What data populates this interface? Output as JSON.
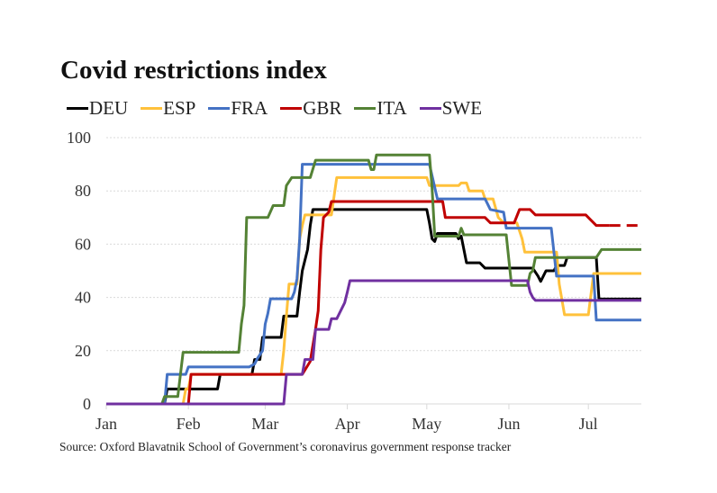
{
  "chart_data": {
    "type": "line",
    "title": "Covid restrictions index",
    "xlabel": "",
    "ylabel": "",
    "ylim": [
      0,
      100
    ],
    "yticks": [
      0,
      20,
      40,
      60,
      80,
      100
    ],
    "xlim_day": [
      0,
      202
    ],
    "xticks": [
      {
        "label": "Jan",
        "day": 0
      },
      {
        "label": "Feb",
        "day": 31
      },
      {
        "label": "Mar",
        "day": 60
      },
      {
        "label": "Apr",
        "day": 91
      },
      {
        "label": "May",
        "day": 121
      },
      {
        "label": "Jun",
        "day": 152
      },
      {
        "label": "Jul",
        "day": 182
      }
    ],
    "grid": "horizontal-dotted",
    "legend": "top-left",
    "x_unit": "day of year 2020",
    "series": [
      {
        "name": "DEU",
        "color": "#000000",
        "points": [
          [
            0,
            0
          ],
          [
            22,
            0
          ],
          [
            23,
            5.6
          ],
          [
            42,
            5.6
          ],
          [
            43,
            11.1
          ],
          [
            55,
            11.1
          ],
          [
            56,
            16.7
          ],
          [
            58,
            16.7
          ],
          [
            59,
            25
          ],
          [
            66,
            25
          ],
          [
            67,
            33
          ],
          [
            72,
            33
          ],
          [
            73,
            42
          ],
          [
            74,
            50
          ],
          [
            76,
            58
          ],
          [
            77,
            67
          ],
          [
            78,
            73
          ],
          [
            121,
            73
          ],
          [
            122,
            68
          ],
          [
            123,
            62
          ],
          [
            124,
            61
          ],
          [
            125,
            64
          ],
          [
            132,
            64
          ],
          [
            133,
            62
          ],
          [
            134,
            63
          ],
          [
            135,
            58
          ],
          [
            136,
            53
          ],
          [
            141,
            53
          ],
          [
            143,
            51
          ],
          [
            161,
            51
          ],
          [
            163,
            48
          ],
          [
            164,
            46
          ],
          [
            165,
            48
          ],
          [
            166,
            50
          ],
          [
            169,
            50
          ],
          [
            170,
            52
          ],
          [
            173,
            52
          ],
          [
            174,
            55
          ],
          [
            185,
            55
          ],
          [
            186,
            39.4
          ],
          [
            202,
            39.4
          ]
        ]
      },
      {
        "name": "ESP",
        "color": "#FFC13B",
        "points": [
          [
            0,
            0
          ],
          [
            29,
            0
          ],
          [
            30,
            5.6
          ],
          [
            31,
            5.6
          ],
          [
            32,
            11.1
          ],
          [
            66,
            11.1
          ],
          [
            67,
            20
          ],
          [
            68,
            33
          ],
          [
            69,
            45
          ],
          [
            72,
            45
          ],
          [
            73,
            62
          ],
          [
            74,
            67
          ],
          [
            75,
            71
          ],
          [
            85,
            71
          ],
          [
            87,
            85
          ],
          [
            121,
            85
          ],
          [
            122,
            82
          ],
          [
            133,
            82
          ],
          [
            134,
            83
          ],
          [
            136,
            83
          ],
          [
            137,
            80
          ],
          [
            142,
            80
          ],
          [
            143,
            77
          ],
          [
            146,
            77
          ],
          [
            148,
            70
          ],
          [
            150,
            68
          ],
          [
            155,
            68
          ],
          [
            157,
            62
          ],
          [
            158,
            57
          ],
          [
            170,
            57
          ],
          [
            171,
            45
          ],
          [
            173,
            33.5
          ],
          [
            182,
            33.5
          ],
          [
            184,
            49
          ],
          [
            202,
            49
          ]
        ]
      },
      {
        "name": "FRA",
        "color": "#4472C4",
        "points": [
          [
            0,
            0
          ],
          [
            22,
            0
          ],
          [
            23,
            11.1
          ],
          [
            30,
            11.1
          ],
          [
            31,
            13.9
          ],
          [
            54,
            13.9
          ],
          [
            56,
            15
          ],
          [
            57,
            17
          ],
          [
            59,
            20
          ],
          [
            60,
            30
          ],
          [
            61,
            34
          ],
          [
            62,
            39.5
          ],
          [
            70,
            39.5
          ],
          [
            71,
            42
          ],
          [
            72,
            47
          ],
          [
            73,
            62
          ],
          [
            74,
            90
          ],
          [
            81,
            90
          ],
          [
            122,
            90
          ],
          [
            125,
            77
          ],
          [
            143,
            77
          ],
          [
            145,
            73
          ],
          [
            150,
            72
          ],
          [
            151,
            66
          ],
          [
            168,
            66
          ],
          [
            170,
            48
          ],
          [
            184,
            48
          ],
          [
            185,
            31.5
          ],
          [
            202,
            31.5
          ]
        ]
      },
      {
        "name": "GBR",
        "color": "#C00000",
        "points": [
          [
            0,
            0
          ],
          [
            31,
            0
          ],
          [
            32,
            11.1
          ],
          [
            74,
            11.1
          ],
          [
            77,
            16
          ],
          [
            79,
            28
          ],
          [
            80,
            35
          ],
          [
            81,
            58
          ],
          [
            82,
            70
          ],
          [
            84,
            72
          ],
          [
            85,
            76
          ],
          [
            127,
            76
          ],
          [
            128,
            70
          ],
          [
            143,
            70
          ],
          [
            145,
            68
          ],
          [
            154,
            68
          ],
          [
            156,
            73
          ],
          [
            160,
            73
          ],
          [
            162,
            71
          ],
          [
            181,
            71
          ],
          [
            183,
            69
          ],
          [
            185,
            67
          ],
          [
            202,
            67
          ]
        ]
      },
      {
        "name": "ITA",
        "color": "#548235",
        "points": [
          [
            0,
            0
          ],
          [
            21,
            0
          ],
          [
            22,
            2.8
          ],
          [
            27,
            2.8
          ],
          [
            29,
            19.4
          ],
          [
            50,
            19.4
          ],
          [
            51,
            30
          ],
          [
            52,
            37
          ],
          [
            53,
            70
          ],
          [
            61,
            70
          ],
          [
            63,
            74.5
          ],
          [
            67,
            74.5
          ],
          [
            68,
            82
          ],
          [
            70,
            85
          ],
          [
            77,
            85
          ],
          [
            79,
            91.5
          ],
          [
            99,
            91.5
          ],
          [
            100,
            88
          ],
          [
            101,
            88
          ],
          [
            102,
            93.5
          ],
          [
            122,
            93.5
          ],
          [
            123,
            81
          ],
          [
            124,
            63
          ],
          [
            133,
            63
          ],
          [
            134,
            66
          ],
          [
            135,
            63.5
          ],
          [
            151,
            63.5
          ],
          [
            153,
            44.5
          ],
          [
            159,
            44.5
          ],
          [
            160,
            49
          ],
          [
            161,
            50
          ],
          [
            162,
            55
          ],
          [
            185,
            55
          ],
          [
            187,
            58
          ],
          [
            202,
            58
          ]
        ]
      },
      {
        "name": "SWE",
        "color": "#7030A0",
        "points": [
          [
            0,
            0
          ],
          [
            67,
            0
          ],
          [
            68,
            11.1
          ],
          [
            74,
            11.1
          ],
          [
            75,
            16.7
          ],
          [
            78,
            16.7
          ],
          [
            79,
            28
          ],
          [
            84,
            28
          ],
          [
            85,
            32
          ],
          [
            87,
            32
          ],
          [
            88,
            34
          ],
          [
            89,
            36
          ],
          [
            90,
            38
          ],
          [
            91,
            42
          ],
          [
            92,
            46.3
          ],
          [
            159,
            46.3
          ],
          [
            160,
            42
          ],
          [
            161,
            40
          ],
          [
            162,
            38.9
          ],
          [
            202,
            38.9
          ]
        ]
      }
    ],
    "annotations": {
      "GBR_dashed_after_day": 190
    }
  },
  "source": "Source: Oxford Blavatnik School of Government’s coronavirus government response tracker"
}
